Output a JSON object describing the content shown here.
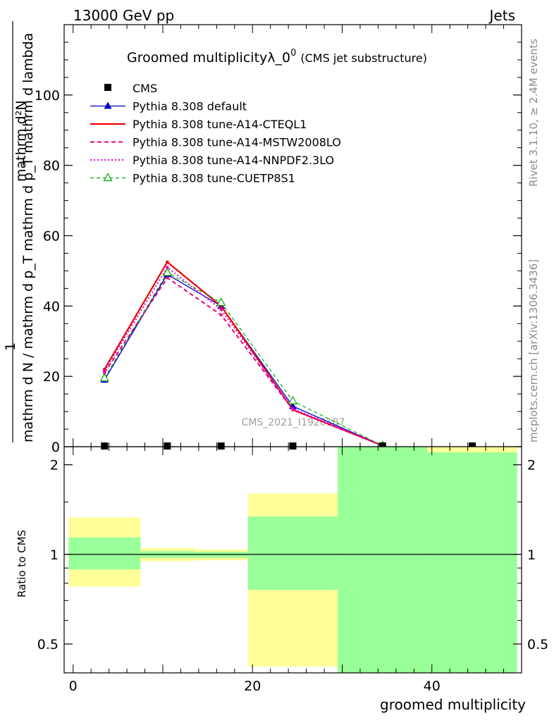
{
  "header": {
    "energy": "13000 GeV pp",
    "category": "Jets"
  },
  "side_labels": {
    "rivet": "Rivet 3.1.10, ≥ 2.4M events",
    "mcplots": "mcplots.cern.ch [arXiv:1306.3436]"
  },
  "chart_data": [
    {
      "type": "line",
      "title": "Groomed multiplicityλ_0",
      "title_sup": "0",
      "subtitle": "(CMS jet substructure)",
      "ylabel_top": "mathrm d²N",
      "ylabel_one": "1",
      "ylabel_bottom": "mathrm d N / mathrm d p_T mathrm d p_T mathrm d lambda",
      "xlim": [
        -1,
        50
      ],
      "ylim": [
        0,
        120
      ],
      "yticks": [
        0,
        20,
        40,
        60,
        80,
        100
      ],
      "ytick_labels": [
        "0",
        "20",
        "40",
        "60",
        "80",
        "100"
      ],
      "watermark": "CMS_2021_I1920187",
      "legend_position": "top-left",
      "legend": [
        "CMS",
        "Pythia 8.308 default",
        "Pythia 8.308 tune-A14-CTEQL1",
        "Pythia 8.308 tune-A14-MSTW2008LO",
        "Pythia 8.308 tune-A14-NNPDF2.3LO",
        "Pythia 8.308 tune-CUETP8S1"
      ],
      "data": {
        "name": "CMS",
        "x": [
          3.5,
          10.5,
          16.5,
          24.5,
          34.5,
          44.5
        ],
        "y": [
          0,
          0,
          0,
          0,
          0,
          0
        ],
        "color": "#000000"
      },
      "series": [
        {
          "name": "Pythia 8.308 default",
          "x": [
            3.5,
            10.5,
            16.5,
            24.5,
            34.5
          ],
          "y": [
            19,
            49,
            40,
            11.5,
            0.3
          ],
          "color": "#0000cc",
          "dash": "",
          "width": 1.3,
          "marker": "filled-triangle"
        },
        {
          "name": "Pythia 8.308 tune-A14-CTEQL1",
          "x": [
            3.5,
            10.5,
            16.5,
            24.5,
            34.5
          ],
          "y": [
            22,
            52.5,
            40,
            10.5,
            0.3
          ],
          "color": "#ee0000",
          "dash": "",
          "width": 2.2,
          "marker": ""
        },
        {
          "name": "Pythia 8.308 tune-A14-MSTW2008LO",
          "x": [
            3.5,
            10.5,
            16.5,
            24.5,
            34.5
          ],
          "y": [
            21,
            48,
            37.5,
            10.5,
            0.3
          ],
          "color": "#ee0077",
          "dash": "6,4",
          "width": 2,
          "marker": ""
        },
        {
          "name": "Pythia 8.308 tune-A14-NNPDF2.3LO",
          "x": [
            3.5,
            10.5,
            16.5,
            24.5,
            34.5
          ],
          "y": [
            21.5,
            51,
            39,
            10.8,
            0.3
          ],
          "color": "#dd00cc",
          "dash": "2,3",
          "width": 2,
          "marker": ""
        },
        {
          "name": "Pythia 8.308 tune-CUETP8S1",
          "x": [
            3.5,
            10.5,
            16.5,
            24.5,
            34.5
          ],
          "y": [
            19.5,
            49.5,
            41,
            13,
            0.3
          ],
          "color": "#00aa00",
          "dash": "5,4",
          "width": 1.2,
          "marker": "open-triangle"
        }
      ]
    },
    {
      "type": "area",
      "ylabel": "Ratio to CMS",
      "xlabel": "groomed multiplicity",
      "xlim": [
        -1,
        50
      ],
      "ylim": [
        0.4,
        2.3
      ],
      "log_scale_y": true,
      "xticks": [
        0,
        20,
        40
      ],
      "xtick_labels": [
        "0",
        "20",
        "40"
      ],
      "yticks": [
        0.5,
        1,
        2
      ],
      "ytick_labels": [
        "0.5",
        "1",
        "2"
      ],
      "reference_line": 1,
      "bands": [
        {
          "x0": -0.5,
          "x1": 7.5,
          "yellow": [
            0.78,
            1.33
          ],
          "green": [
            0.89,
            1.14
          ]
        },
        {
          "x0": 7.5,
          "x1": 13.5,
          "yellow": [
            0.95,
            1.05
          ],
          "green": [
            0.975,
            1.025
          ]
        },
        {
          "x0": 13.5,
          "x1": 19.5,
          "yellow": [
            0.955,
            1.04
          ],
          "green": [
            0.975,
            1.02
          ]
        },
        {
          "x0": 19.5,
          "x1": 29.5,
          "yellow": [
            0.42,
            1.6
          ],
          "green": [
            0.76,
            1.34
          ]
        },
        {
          "x0": 29.5,
          "x1": 39.5,
          "yellow": [
            0.4,
            2.3
          ],
          "green": [
            0.4,
            2.3
          ]
        },
        {
          "x0": 39.5,
          "x1": 49.5,
          "yellow": [
            0.4,
            2.3
          ],
          "green": [
            0.4,
            2.2
          ]
        }
      ],
      "band_colors": {
        "yellow": "#ffff99",
        "green": "#99ff99"
      }
    }
  ]
}
